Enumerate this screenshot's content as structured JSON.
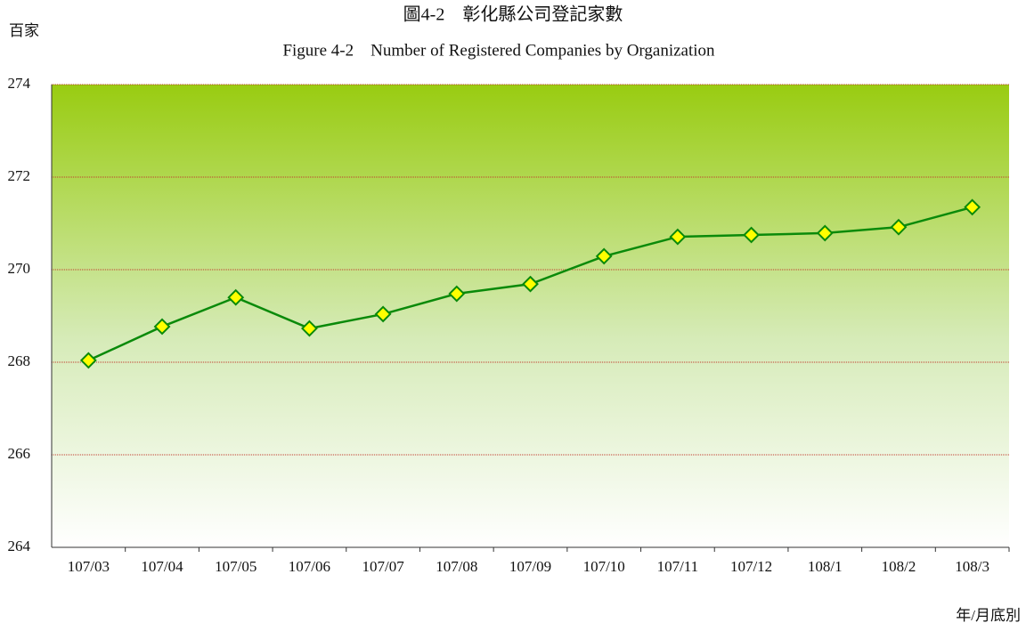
{
  "chart_data": {
    "type": "line",
    "title": "圖4-2　彰化縣公司登記家數",
    "subtitle": "Figure 4-2　Number of Registered Companies by Organization",
    "y_axis_label": "百家",
    "x_axis_label": "年/月底別",
    "categories": [
      "107/03",
      "107/04",
      "107/05",
      "107/06",
      "107/07",
      "107/08",
      "107/09",
      "107/10",
      "107/11",
      "107/12",
      "108/1",
      "108/2",
      "108/3"
    ],
    "series": [
      {
        "color": "#0a8a0a",
        "marker_color": "#ffff00",
        "values": [
          268.04,
          268.77,
          269.4,
          268.73,
          269.04,
          269.48,
          269.69,
          270.29,
          270.71,
          270.75,
          270.79,
          270.92,
          271.35
        ]
      }
    ],
    "ylim": [
      264,
      274
    ],
    "yticks": [
      264,
      266,
      268,
      270,
      272,
      274
    ],
    "grid": true
  }
}
